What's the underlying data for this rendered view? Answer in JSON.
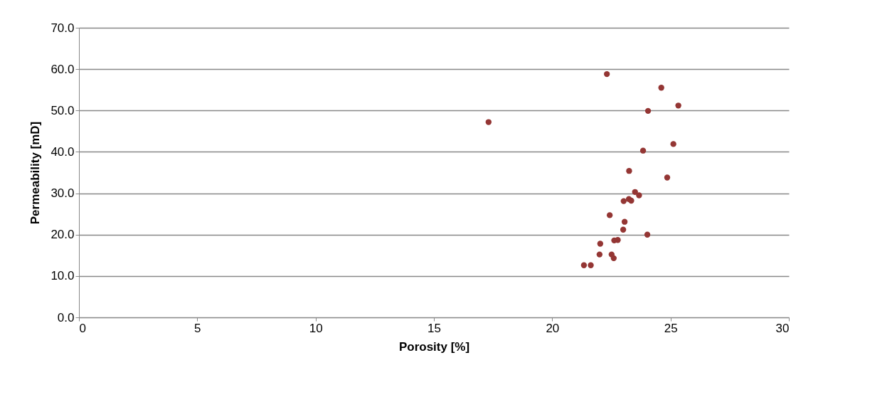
{
  "chart_data": {
    "type": "scatter",
    "xlabel": "Porosity [%]",
    "ylabel": "Permeability [mD]",
    "xlim": [
      0,
      30
    ],
    "xticks": [
      0,
      5,
      10,
      15,
      20,
      25,
      30
    ],
    "ylim": [
      0,
      70
    ],
    "yticks": [
      {
        "value": 0,
        "label": "0.0"
      },
      {
        "value": 10,
        "label": "10.0"
      },
      {
        "value": 20,
        "label": "20.0"
      },
      {
        "value": 30,
        "label": "30.0"
      },
      {
        "value": 40,
        "label": "40.0"
      },
      {
        "value": 50,
        "label": "50.0"
      },
      {
        "value": 60,
        "label": "60.0"
      },
      {
        "value": 70,
        "label": "70.0"
      }
    ],
    "grid": "y",
    "legend": false,
    "marker": "circle",
    "series": [
      {
        "color": "#943634",
        "x": [
          22.31,
          24.61,
          25.33,
          24.05,
          25.12,
          23.84,
          23.25,
          24.86,
          23.5,
          23.67,
          23.02,
          23.24,
          23.34,
          22.43,
          23.06,
          23.0,
          24.02,
          22.62,
          22.77,
          22.03,
          22.0,
          22.51,
          22.6,
          21.34,
          21.63,
          17.31
        ],
        "values": [
          58.8,
          55.5,
          51.2,
          49.9,
          41.9,
          40.3,
          35.4,
          33.8,
          30.3,
          29.5,
          28.1,
          28.6,
          28.2,
          24.7,
          23.1,
          21.2,
          20.0,
          18.6,
          18.7,
          17.8,
          15.2,
          15.2,
          14.3,
          12.6,
          12.6,
          47.2
        ]
      }
    ]
  }
}
